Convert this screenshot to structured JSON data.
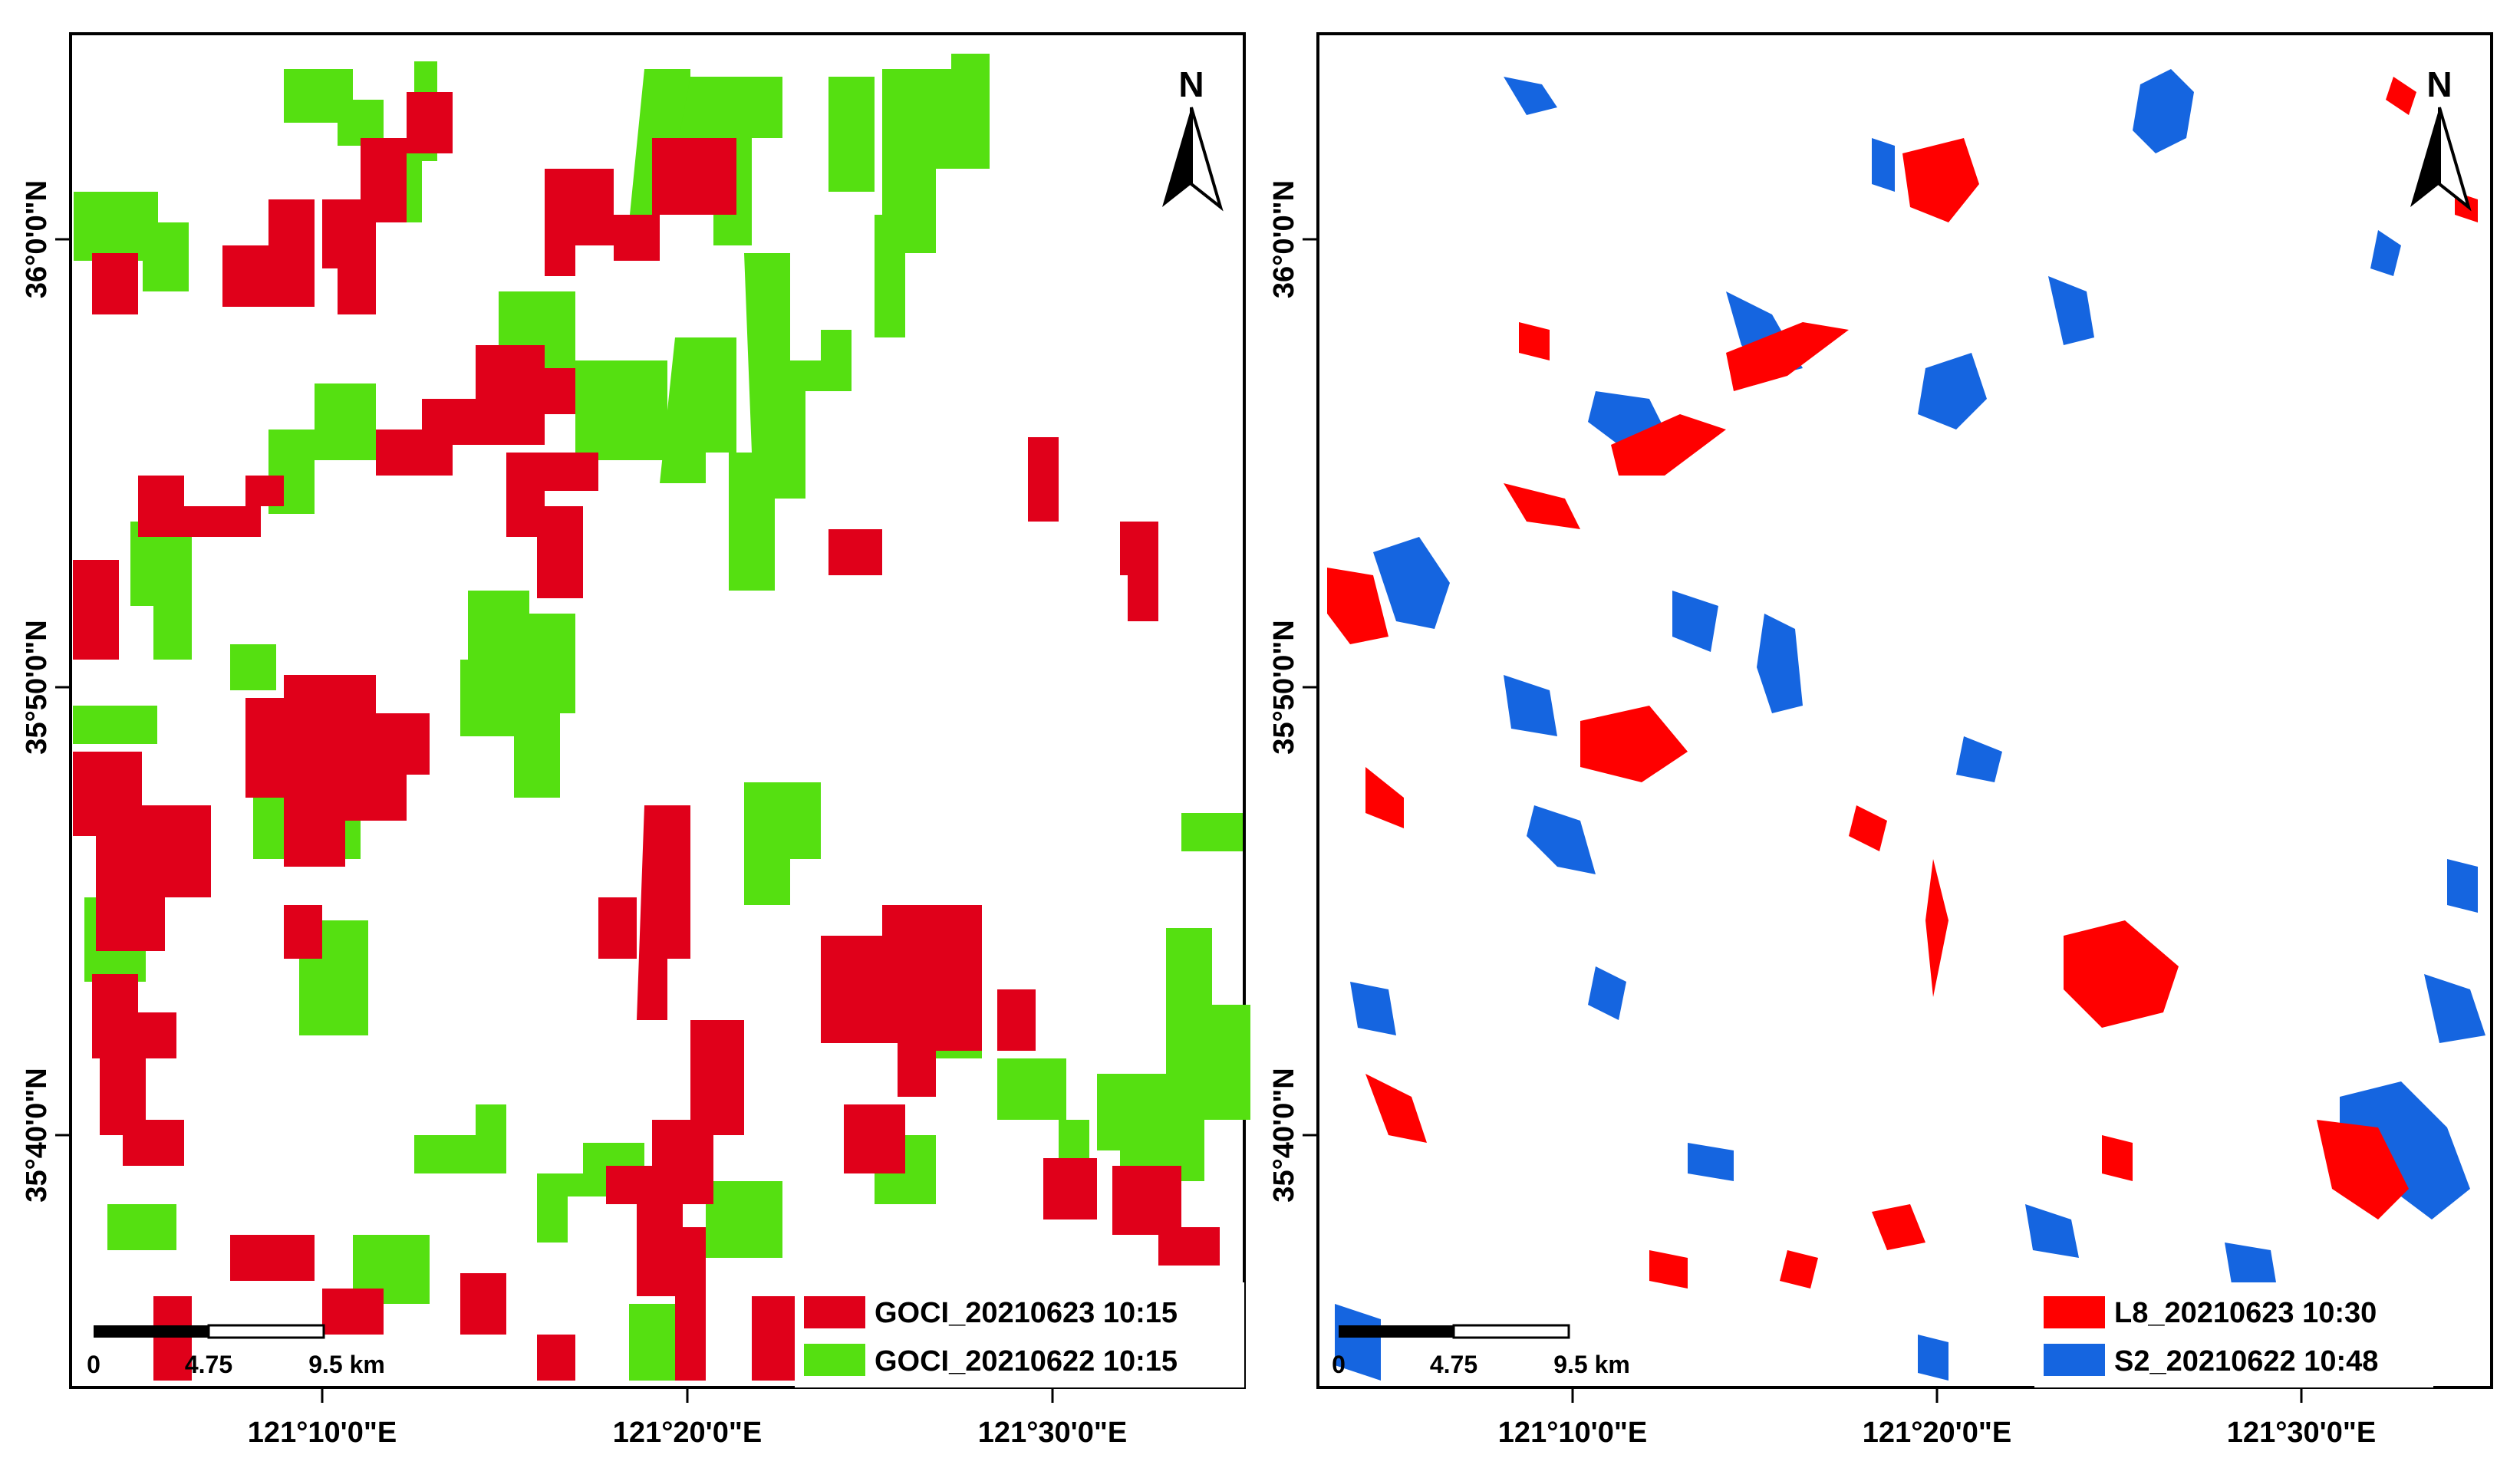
{
  "maps": [
    {
      "id": "goci",
      "north_label": "N",
      "lat_labels": [
        "36°0'0\"N",
        "35°50'0\"N",
        "35°40'0\"N"
      ],
      "lon_labels": [
        "121°10'0\"E",
        "121°20'0\"E",
        "121°30'0\"E"
      ],
      "scale_labels": [
        "0",
        "4.75",
        "9.5 km"
      ],
      "legend": [
        {
          "label": "GOCI_20210623 10:15",
          "color": "#e0001a"
        },
        {
          "label": "GOCI_20210622 10:15",
          "color": "#55e011"
        }
      ]
    },
    {
      "id": "landsat-sentinel",
      "north_label": "N",
      "lat_labels": [
        "36°0'0\"N",
        "35°50'0\"N",
        "35°40'0\"N"
      ],
      "lon_labels": [
        "121°10'0\"E",
        "121°20'0\"E",
        "121°30'0\"E"
      ],
      "scale_labels": [
        "0",
        "4.75",
        "9.5 km"
      ],
      "legend": [
        {
          "label": "L8_20210623 10:30",
          "color": "#ff0000"
        },
        {
          "label": "S2_20210622 10:48",
          "color": "#1565e0"
        }
      ]
    }
  ]
}
